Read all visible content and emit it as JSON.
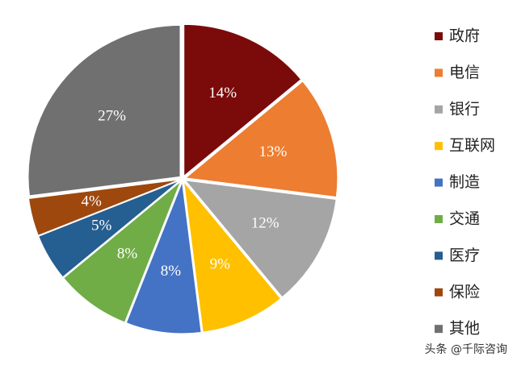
{
  "chart_data": {
    "type": "pie",
    "categories": [
      "政府",
      "电信",
      "银行",
      "互联网",
      "制造",
      "交通",
      "医疗",
      "保险",
      "其他"
    ],
    "values": [
      14,
      13,
      12,
      9,
      8,
      8,
      5,
      4,
      27
    ],
    "value_labels": [
      "14%",
      "13%",
      "12%",
      "9%",
      "8%",
      "8%",
      "5%",
      "4%",
      "27%"
    ],
    "colors": [
      "#7b0a0a",
      "#ed7d31",
      "#a5a5a5",
      "#ffc000",
      "#4472c4",
      "#70ad47",
      "#255e91",
      "#9e480e",
      "#707070"
    ],
    "legend": "right"
  },
  "credit": "头条 @千际咨询"
}
